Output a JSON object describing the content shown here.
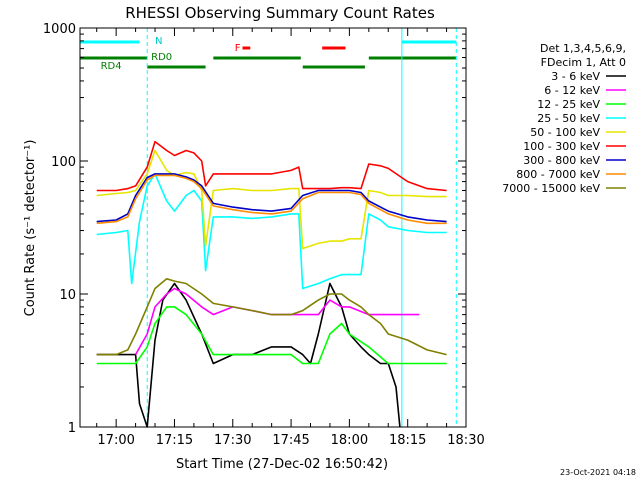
{
  "chart_data": {
    "type": "line",
    "title": "RHESSI Observing Summary Count Rates",
    "xlabel": "Start Time (27-Dec-02 16:50:42)",
    "ylabel": "Count Rate (s⁻¹ detector⁻¹)",
    "y_scale": "log",
    "ylim": [
      1,
      1000
    ],
    "xlim": [
      "16:50:42",
      "18:30:00"
    ],
    "x_ticks": [
      "17:00",
      "17:15",
      "17:30",
      "17:45",
      "18:00",
      "18:15",
      "18:30"
    ],
    "y_ticks": [
      "1",
      "10",
      "100",
      "1000"
    ],
    "legend": {
      "placement": "right",
      "header": [
        "Det 1,3,4,5,6,9,",
        "FDecim 1, Att 0"
      ]
    },
    "series": [
      {
        "name": "3 - 6 keV",
        "color": "#000000",
        "x": [
          "16:55",
          "17:00",
          "17:03",
          "17:05",
          "17:06",
          "17:08",
          "17:10",
          "17:12",
          "17:15",
          "17:18",
          "17:22",
          "17:25",
          "17:30",
          "17:35",
          "17:40",
          "17:45",
          "17:48",
          "17:50",
          "17:52",
          "17:55",
          "17:58",
          "18:00",
          "18:03",
          "18:05",
          "18:08",
          "18:10",
          "18:12",
          "18:13"
        ],
        "y": [
          3.5,
          3.5,
          3.5,
          3.5,
          1.5,
          1,
          4.5,
          9,
          12,
          9,
          5,
          3,
          3.5,
          3.5,
          4,
          4,
          3.5,
          3,
          5,
          12,
          8,
          5,
          4,
          3.5,
          3,
          3,
          2,
          1
        ]
      },
      {
        "name": "6 - 12 keV",
        "color": "#ff00ff",
        "x": [
          "17:05",
          "17:08",
          "17:10",
          "17:13",
          "17:15",
          "17:18",
          "17:22",
          "17:25",
          "17:30",
          "17:35",
          "17:40",
          "17:45",
          "17:48",
          "17:52",
          "17:55",
          "17:58",
          "18:00",
          "18:05",
          "18:10",
          "18:15",
          "18:18"
        ],
        "y": [
          3.5,
          5,
          8,
          10,
          11,
          10,
          8,
          7,
          8,
          7.5,
          7,
          7,
          7,
          7,
          9,
          8,
          8,
          7,
          7,
          7,
          7
        ]
      },
      {
        "name": "12 - 25 keV",
        "color": "#00ff00",
        "x": [
          "16:55",
          "17:00",
          "17:03",
          "17:05",
          "17:08",
          "17:10",
          "17:13",
          "17:15",
          "17:18",
          "17:22",
          "17:25",
          "17:30",
          "17:35",
          "17:40",
          "17:45",
          "17:48",
          "17:52",
          "17:55",
          "17:58",
          "18:00",
          "18:05",
          "18:10",
          "18:15",
          "18:20",
          "18:25"
        ],
        "y": [
          3,
          3,
          3,
          3,
          4,
          6,
          8,
          8,
          7,
          5,
          3.5,
          3.5,
          3.5,
          3.5,
          3.5,
          3,
          3,
          5,
          6,
          5,
          4,
          3,
          3,
          3,
          3
        ]
      },
      {
        "name": "25 - 50 keV",
        "color": "#00ffff",
        "x": [
          "16:55",
          "17:00",
          "17:03",
          "17:04",
          "17:06",
          "17:08",
          "17:10",
          "17:13",
          "17:15",
          "17:18",
          "17:20",
          "17:22",
          "17:23",
          "17:25",
          "17:30",
          "17:35",
          "17:40",
          "17:45",
          "17:47",
          "17:48",
          "17:52",
          "17:55",
          "17:58",
          "18:00",
          "18:03",
          "18:05",
          "18:08",
          "18:10",
          "18:15",
          "18:20",
          "18:25"
        ],
        "y": [
          28,
          29,
          30,
          12,
          35,
          65,
          80,
          50,
          42,
          55,
          60,
          50,
          15,
          38,
          38,
          37,
          38,
          40,
          40,
          11,
          12,
          13,
          14,
          14,
          14,
          40,
          36,
          32,
          30,
          29,
          29
        ]
      },
      {
        "name": "50 - 100 keV",
        "color": "#e5e500",
        "x": [
          "16:55",
          "17:00",
          "17:03",
          "17:05",
          "17:08",
          "17:10",
          "17:13",
          "17:15",
          "17:18",
          "17:20",
          "17:22",
          "17:23",
          "17:25",
          "17:30",
          "17:35",
          "17:40",
          "17:45",
          "17:47",
          "17:48",
          "17:52",
          "17:55",
          "17:58",
          "18:00",
          "18:03",
          "18:05",
          "18:08",
          "18:10",
          "18:15",
          "18:20",
          "18:25"
        ],
        "y": [
          55,
          57,
          58,
          60,
          80,
          120,
          85,
          78,
          82,
          80,
          60,
          23,
          60,
          62,
          60,
          60,
          62,
          62,
          22,
          24,
          25,
          25,
          26,
          26,
          60,
          58,
          55,
          55,
          54,
          54
        ]
      },
      {
        "name": "100 - 300 keV",
        "color": "#ff0000",
        "x": [
          "16:55",
          "17:00",
          "17:03",
          "17:05",
          "17:08",
          "17:10",
          "17:13",
          "17:15",
          "17:18",
          "17:20",
          "17:22",
          "17:23",
          "17:25",
          "17:30",
          "17:35",
          "17:40",
          "17:45",
          "17:47",
          "17:48",
          "17:52",
          "17:55",
          "17:58",
          "18:00",
          "18:03",
          "18:05",
          "18:08",
          "18:10",
          "18:15",
          "18:20",
          "18:25"
        ],
        "y": [
          60,
          60,
          62,
          65,
          90,
          140,
          120,
          110,
          120,
          115,
          100,
          65,
          80,
          80,
          80,
          80,
          85,
          90,
          62,
          62,
          62,
          63,
          63,
          62,
          95,
          92,
          88,
          70,
          62,
          60
        ]
      },
      {
        "name": "300 - 800 keV",
        "color": "#0000c8",
        "x": [
          "16:55",
          "17:00",
          "17:03",
          "17:05",
          "17:08",
          "17:10",
          "17:13",
          "17:15",
          "17:18",
          "17:20",
          "17:22",
          "17:25",
          "17:30",
          "17:35",
          "17:40",
          "17:45",
          "17:48",
          "17:52",
          "17:55",
          "17:58",
          "18:00",
          "18:03",
          "18:05",
          "18:08",
          "18:10",
          "18:15",
          "18:20",
          "18:25"
        ],
        "y": [
          35,
          36,
          40,
          55,
          75,
          80,
          80,
          80,
          76,
          72,
          65,
          48,
          45,
          43,
          42,
          44,
          55,
          60,
          60,
          60,
          60,
          58,
          50,
          45,
          42,
          38,
          36,
          35
        ]
      },
      {
        "name": "800 - 7000 keV",
        "color": "#ff8c00",
        "x": [
          "16:55",
          "17:00",
          "17:03",
          "17:05",
          "17:08",
          "17:10",
          "17:13",
          "17:15",
          "17:18",
          "17:20",
          "17:22",
          "17:25",
          "17:30",
          "17:35",
          "17:40",
          "17:45",
          "17:48",
          "17:52",
          "17:55",
          "17:58",
          "18:00",
          "18:03",
          "18:05",
          "18:08",
          "18:10",
          "18:15",
          "18:20",
          "18:25"
        ],
        "y": [
          34,
          35,
          38,
          52,
          72,
          78,
          78,
          78,
          74,
          70,
          62,
          46,
          43,
          41,
          40,
          42,
          52,
          58,
          58,
          58,
          58,
          56,
          48,
          43,
          40,
          36,
          34,
          34
        ]
      },
      {
        "name": "7000 - 15000 keV",
        "color": "#808000",
        "x": [
          "16:55",
          "17:00",
          "17:03",
          "17:05",
          "17:08",
          "17:10",
          "17:13",
          "17:15",
          "17:18",
          "17:22",
          "17:25",
          "17:30",
          "17:35",
          "17:40",
          "17:45",
          "17:48",
          "17:52",
          "17:55",
          "17:58",
          "18:00",
          "18:03",
          "18:05",
          "18:08",
          "18:10",
          "18:15",
          "18:20",
          "18:25"
        ],
        "y": [
          3.5,
          3.5,
          3.8,
          5,
          8,
          11,
          13,
          12.5,
          12,
          10,
          8.5,
          8,
          7.5,
          7,
          7,
          7.5,
          9,
          10,
          10,
          9,
          8,
          7,
          6,
          5,
          4.5,
          3.8,
          3.5
        ]
      }
    ],
    "annotations": {
      "top_labels": [
        "N",
        "RD0",
        "RD4",
        "F"
      ],
      "vertical_markers": [
        "16:50:42",
        "17:08:00",
        "18:13:30",
        "18:27:30"
      ]
    }
  },
  "footer": {
    "timestamp": "23-Oct-2021 04:18"
  }
}
